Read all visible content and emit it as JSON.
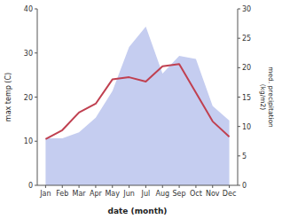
{
  "chart_data": {
    "type": "line",
    "categories": [
      "Jan",
      "Feb",
      "Mar",
      "Apr",
      "May",
      "Jun",
      "Jul",
      "Aug",
      "Sep",
      "Oct",
      "Nov",
      "Dec"
    ],
    "xlabel": "date (month)",
    "ylabel": "max temp (C)",
    "y2label": "med. precipitation\n(kg/m2)",
    "series": [
      {
        "type": "area",
        "axis": "y2",
        "color": "#c5cdf0",
        "values": [
          8.0,
          8.0,
          9.0,
          11.5,
          16.0,
          23.5,
          27.0,
          19.0,
          22.0,
          21.5,
          13.5,
          11.0
        ]
      },
      {
        "type": "line",
        "color": "#c04050",
        "values": [
          10.5,
          12.5,
          16.5,
          18.5,
          24.0,
          24.5,
          23.5,
          27.0,
          27.5,
          21.0,
          14.5,
          11.0
        ]
      }
    ],
    "ylim": [
      0,
      40
    ],
    "yticks": [
      0,
      10,
      20,
      30,
      40
    ],
    "y2lim": [
      0,
      30
    ],
    "y2ticks": [
      0,
      5,
      10,
      15,
      20,
      25,
      30
    ],
    "grid": false
  }
}
